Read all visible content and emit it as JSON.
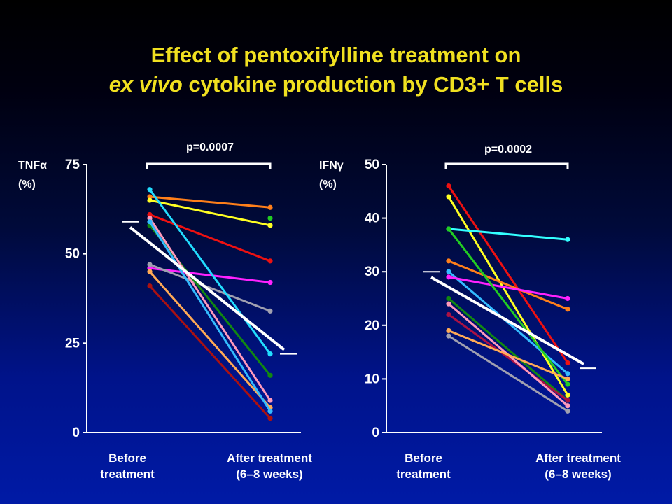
{
  "title": {
    "line1": "Effect of pentoxifylline treatment on",
    "line2_italic": "ex vivo",
    "line2_rest": " cytokine production by CD3+ T cells"
  },
  "colors": {
    "title": "#f0e020",
    "mean_line": "#ffffff",
    "axis": "#ffffff"
  },
  "chart_data": [
    {
      "type": "line",
      "ylabel_main": "TNFα",
      "ylabel_unit": "(%)",
      "ylim": [
        0,
        75
      ],
      "yticks": [
        0,
        25,
        50,
        75
      ],
      "categories": [
        "Before treatment",
        "After treatment (6–8 weeks)"
      ],
      "xlabel_left_line1": "Before",
      "xlabel_left_line2": "treatment",
      "xlabel_right_line1": "After treatment",
      "xlabel_right_line2": "(6–8 weeks)",
      "p_value": "p=0.0007",
      "mean": [
        59,
        22
      ],
      "series": [
        {
          "color": "#ff7f1a",
          "values": [
            66,
            63
          ]
        },
        {
          "color": "#ffff22",
          "values": [
            65,
            58
          ]
        },
        {
          "color": "#ee1111",
          "values": [
            61,
            48
          ]
        },
        {
          "color": "#ff22ff",
          "values": [
            46,
            42
          ]
        },
        {
          "color": "#a0a0b0",
          "values": [
            47,
            34
          ]
        },
        {
          "color": "#22ddff",
          "values": [
            68,
            22
          ]
        },
        {
          "color": "#118811",
          "values": [
            58,
            16
          ]
        },
        {
          "color": "#ff99bb",
          "values": [
            60,
            9
          ]
        },
        {
          "color": "#ffaa55",
          "values": [
            45,
            7
          ]
        },
        {
          "color": "#33bbff",
          "values": [
            59,
            6
          ]
        },
        {
          "color": "#aa1111",
          "values": [
            41,
            4
          ]
        }
      ],
      "extra_points_after": [
        {
          "color": "#22cc22",
          "value": 60
        }
      ]
    },
    {
      "type": "line",
      "ylabel_main": "IFNγ",
      "ylabel_unit": "(%)",
      "ylim": [
        0,
        50
      ],
      "yticks": [
        0,
        10,
        20,
        30,
        40,
        50
      ],
      "categories": [
        "Before treatment",
        "After treatment (6–8 weeks)"
      ],
      "xlabel_left_line1": "Before",
      "xlabel_left_line2": "treatment",
      "xlabel_right_line1": "After treatment",
      "xlabel_right_line2": "(6–8 weeks)",
      "p_value": "p=0.0002",
      "mean": [
        30,
        12
      ],
      "series": [
        {
          "color": "#ee1111",
          "values": [
            46,
            13
          ]
        },
        {
          "color": "#ffff22",
          "values": [
            44,
            7
          ]
        },
        {
          "color": "#33ffff",
          "values": [
            38,
            36
          ]
        },
        {
          "color": "#ff7f1a",
          "values": [
            32,
            23
          ]
        },
        {
          "color": "#33bbff",
          "values": [
            30,
            11
          ]
        },
        {
          "color": "#ff22ff",
          "values": [
            29,
            25
          ]
        },
        {
          "color": "#22cc22",
          "values": [
            38,
            9
          ]
        },
        {
          "color": "#118811",
          "values": [
            25,
            6
          ]
        },
        {
          "color": "#aa1144",
          "values": [
            22,
            6
          ]
        },
        {
          "color": "#ff99bb",
          "values": [
            24,
            5
          ]
        },
        {
          "color": "#ffaa55",
          "values": [
            19,
            10
          ]
        },
        {
          "color": "#a0a0b0",
          "values": [
            18,
            4
          ]
        }
      ],
      "extra_points_after": []
    }
  ]
}
